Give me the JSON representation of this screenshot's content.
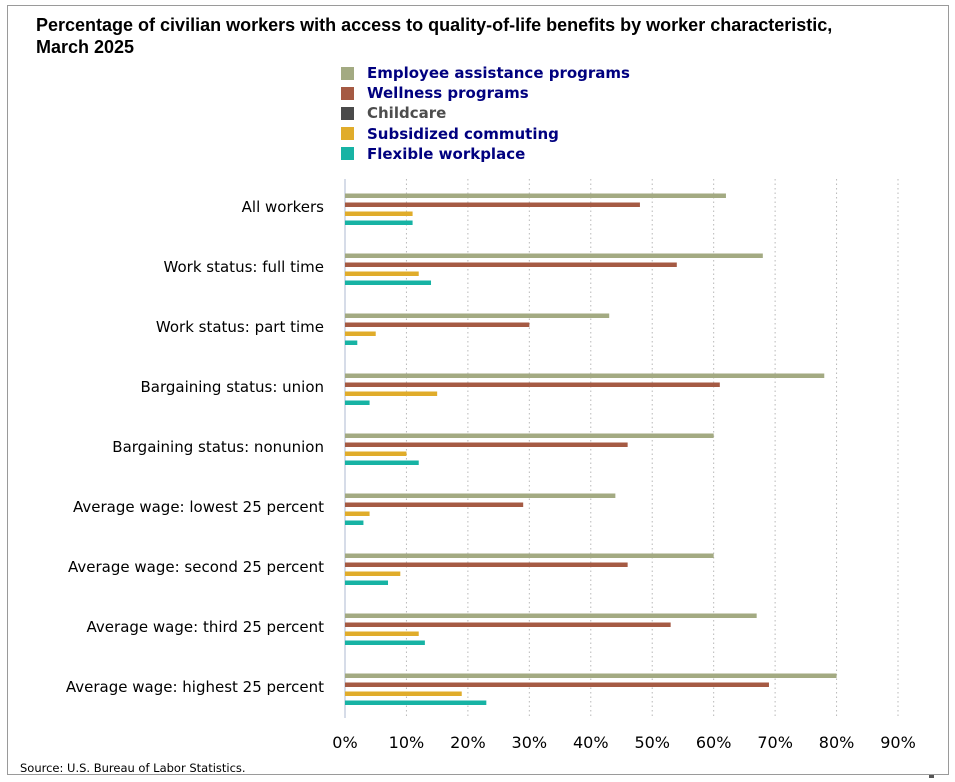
{
  "chart_data": {
    "type": "bar",
    "orientation": "horizontal",
    "title_lines": [
      "Percentage of civilian workers with access to quality-of-life benefits by worker characteristic,",
      "March 2025"
    ],
    "categories": [
      "All workers",
      "Work status: full time",
      "Work status: part time",
      "Bargaining status: union",
      "Bargaining status: nonunion",
      "Average wage: lowest 25 percent",
      "Average wage: second 25 percent",
      "Average wage: third 25 percent",
      "Average wage: highest 25 percent"
    ],
    "series": [
      {
        "name": "Employee assistance programs",
        "color": "#a3aa82",
        "values": [
          62,
          68,
          43,
          78,
          60,
          44,
          60,
          67,
          80
        ]
      },
      {
        "name": "Wellness programs",
        "color": "#a55a43",
        "values": [
          48,
          54,
          30,
          61,
          46,
          29,
          46,
          53,
          69
        ]
      },
      {
        "name": "Childcare",
        "color": "#4a4a4a",
        "values": [
          null,
          null,
          null,
          null,
          null,
          null,
          null,
          null,
          null
        ]
      },
      {
        "name": "Subsidized commuting",
        "color": "#e0ac2b",
        "values": [
          11,
          12,
          5,
          15,
          10,
          4,
          9,
          12,
          19
        ]
      },
      {
        "name": "Flexible workplace",
        "color": "#17b3a4",
        "values": [
          11,
          14,
          2,
          4,
          12,
          3,
          7,
          13,
          23
        ]
      }
    ],
    "xlim": [
      0,
      90
    ],
    "x_ticks": [
      "0%",
      "10%",
      "20%",
      "30%",
      "40%",
      "50%",
      "60%",
      "70%",
      "80%",
      "90%"
    ],
    "grid": "vertical dotted",
    "legend_position": "top"
  },
  "source_note": "Source: U.S. Bureau of Labor Statistics."
}
